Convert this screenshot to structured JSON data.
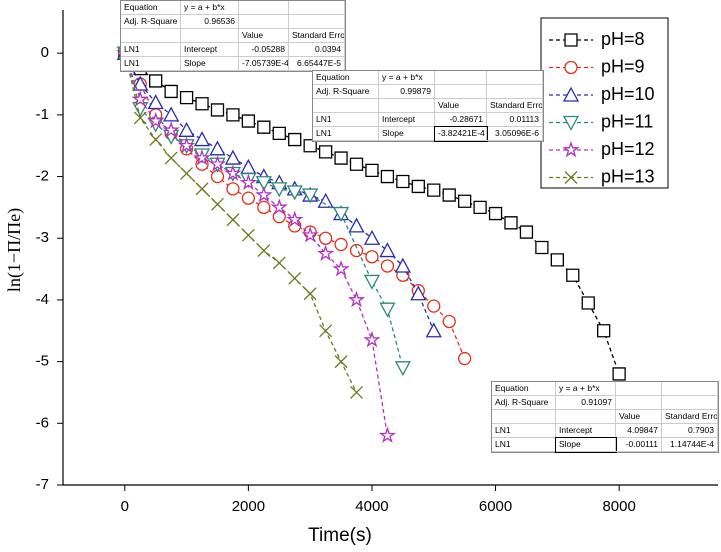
{
  "chart_data": {
    "type": "line",
    "x_label": "Time(s)",
    "y_label": "ln(1−Π/Πe)",
    "xlim": [
      -1000,
      9600
    ],
    "ylim": [
      -7,
      0.7
    ],
    "xticks": [
      0,
      2000,
      4000,
      6000,
      8000
    ],
    "yticks": [
      0,
      -1,
      -2,
      -3,
      -4,
      -5,
      -6,
      -7
    ],
    "legend": "upper right",
    "series": [
      {
        "name": "pH=8",
        "color": "#000000",
        "marker": "square",
        "x": [
          0,
          250,
          500,
          750,
          1000,
          1250,
          1500,
          1750,
          2000,
          2250,
          2500,
          2750,
          3000,
          3250,
          3500,
          3750,
          4000,
          4250,
          4500,
          4750,
          5000,
          5250,
          5500,
          5750,
          6000,
          6250,
          6500,
          6750,
          7000,
          7250,
          7500,
          7750,
          8000
        ],
        "values": [
          0,
          -0.25,
          -0.45,
          -0.62,
          -0.72,
          -0.82,
          -0.92,
          -1.0,
          -1.1,
          -1.2,
          -1.3,
          -1.4,
          -1.5,
          -1.6,
          -1.7,
          -1.8,
          -1.9,
          -2.0,
          -2.08,
          -2.16,
          -2.22,
          -2.3,
          -2.4,
          -2.5,
          -2.6,
          -2.75,
          -2.9,
          -3.15,
          -3.35,
          -3.6,
          -4.05,
          -4.5,
          -5.2
        ]
      },
      {
        "name": "pH=9",
        "color": "#e0301e",
        "marker": "circle",
        "x": [
          0,
          250,
          500,
          750,
          1000,
          1250,
          1500,
          1750,
          2000,
          2250,
          2500,
          2750,
          3000,
          3250,
          3500,
          3750,
          4000,
          4250,
          4500,
          4750,
          5000,
          5250,
          5500
        ],
        "values": [
          0,
          -0.5,
          -1.0,
          -1.3,
          -1.55,
          -1.8,
          -2.0,
          -2.2,
          -2.35,
          -2.5,
          -2.65,
          -2.8,
          -2.9,
          -3.0,
          -3.1,
          -3.2,
          -3.3,
          -3.45,
          -3.6,
          -3.85,
          -4.1,
          -4.35,
          -4.95
        ]
      },
      {
        "name": "pH=10",
        "color": "#2b2bb0",
        "marker": "triangle-up",
        "x": [
          0,
          250,
          500,
          750,
          1000,
          1250,
          1500,
          1750,
          2000,
          2250,
          2500,
          2750,
          3000,
          3250,
          3500,
          3750,
          4000,
          4250,
          4500,
          4750,
          5000
        ],
        "values": [
          0,
          -0.5,
          -0.8,
          -1.0,
          -1.25,
          -1.4,
          -1.55,
          -1.7,
          -1.85,
          -2.0,
          -2.1,
          -2.2,
          -2.3,
          -2.4,
          -2.6,
          -2.8,
          -3.0,
          -3.2,
          -3.45,
          -3.9,
          -4.5
        ]
      },
      {
        "name": "pH=11",
        "color": "#2a8a7a",
        "marker": "triangle-down",
        "x": [
          0,
          250,
          500,
          750,
          1000,
          1250,
          1500,
          1750,
          2000,
          2250,
          2500,
          2750,
          3000,
          3500,
          4000,
          4250,
          4500
        ],
        "values": [
          0,
          -0.9,
          -1.15,
          -1.35,
          -1.5,
          -1.65,
          -1.8,
          -1.95,
          -2.05,
          -2.1,
          -2.2,
          -2.25,
          -2.3,
          -2.6,
          -3.7,
          -4.15,
          -5.1
        ]
      },
      {
        "name": "pH=12",
        "color": "#b030c0",
        "marker": "star",
        "x": [
          0,
          250,
          500,
          750,
          1000,
          1250,
          1500,
          1750,
          2000,
          2250,
          2500,
          2750,
          3000,
          3250,
          3500,
          3750,
          4000,
          4250
        ],
        "values": [
          0,
          -0.75,
          -1.1,
          -1.25,
          -1.5,
          -1.7,
          -1.8,
          -1.95,
          -2.1,
          -2.3,
          -2.5,
          -2.7,
          -2.95,
          -3.25,
          -3.5,
          -4.0,
          -4.65,
          -6.2
        ]
      },
      {
        "name": "pH=13",
        "color": "#6b7a1f",
        "marker": "x",
        "x": [
          0,
          250,
          500,
          750,
          1000,
          1250,
          1500,
          1750,
          2000,
          2250,
          2500,
          2750,
          3000,
          3250,
          3500,
          3750
        ],
        "values": [
          0,
          -1.05,
          -1.4,
          -1.7,
          -1.95,
          -2.2,
          -2.45,
          -2.7,
          -2.95,
          -3.2,
          -3.4,
          -3.65,
          -3.9,
          -4.5,
          -5.0,
          -5.5
        ]
      }
    ]
  },
  "fit_tables": [
    {
      "labels": [
        "Equation",
        "Adj. R-Square"
      ],
      "equation": "y = a + b*x",
      "adj_r_square": "0.96536",
      "header": [
        "Value",
        "Standard Error"
      ],
      "rows": [
        [
          "LN1",
          "Intercept",
          "-0.05288",
          "0.0394"
        ],
        [
          "LN1",
          "Slope",
          "-7.05739E-4",
          "6.65447E-5"
        ]
      ]
    },
    {
      "labels": [
        "Equation",
        "Adj. R-Square"
      ],
      "equation": "y = a + b*x",
      "adj_r_square": "0.99879",
      "header": [
        "Value",
        "Standard Error"
      ],
      "rows": [
        [
          "LN1",
          "Intercept",
          "-0.28671",
          "0.01113"
        ],
        [
          "LN1",
          "Slope",
          "-3.82421E-4",
          "3.05096E-6"
        ]
      ]
    },
    {
      "labels": [
        "Equation",
        "Adj. R-Square"
      ],
      "equation": "y = a + b*x",
      "adj_r_square": "0.91097",
      "header": [
        "Value",
        "Standard Error"
      ],
      "rows": [
        [
          "LN1",
          "Intercept",
          "4.09847",
          "0.7903"
        ],
        [
          "LN1",
          "Slope",
          "-0.00111",
          "1.14744E-4"
        ]
      ]
    }
  ]
}
